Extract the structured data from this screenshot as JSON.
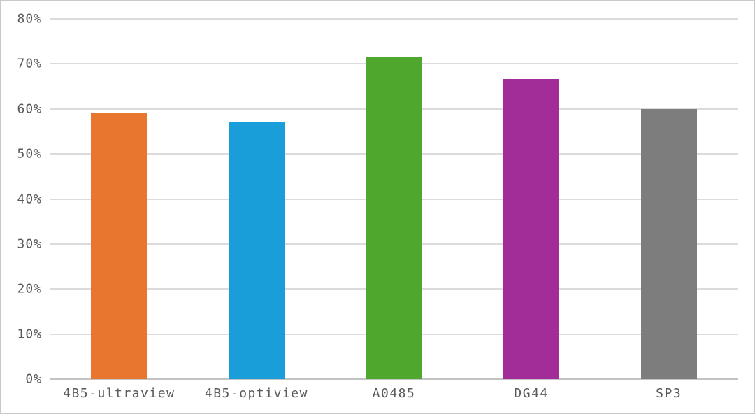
{
  "chart_data": {
    "type": "bar",
    "categories": [
      "4B5-ultraview",
      "4B5-optiview",
      "A0485",
      "DG44",
      "SP3"
    ],
    "values": [
      59,
      57,
      71.5,
      66.7,
      60
    ],
    "value_unit": "%",
    "series_colors": [
      "#E8762F",
      "#1A9ED9",
      "#4FA82D",
      "#A32D98",
      "#7D7D7D"
    ],
    "title": "",
    "xlabel": "",
    "ylabel": "",
    "ylim": [
      0,
      80
    ],
    "ytick_step": 10,
    "ytick_labels": [
      "0%",
      "10%",
      "20%",
      "30%",
      "40%",
      "50%",
      "60%",
      "70%",
      "80%"
    ],
    "grid": true,
    "legend": false,
    "colors": {
      "text": "#595959",
      "gridline": "#DBDBDB",
      "axis_line": "#C3C3C3",
      "background": "#FFFFFF",
      "border": "#C9C9C9"
    }
  }
}
